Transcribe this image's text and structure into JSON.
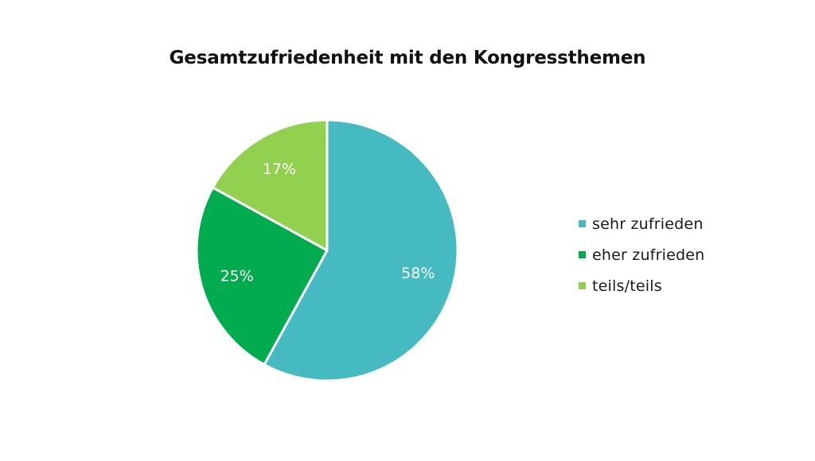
{
  "chart_data": {
    "type": "pie",
    "title": "Gesamtzufriedenheit mit den Kongressthemen",
    "categories": [
      "sehr zufrieden",
      "eher zufrieden",
      "teils/teils"
    ],
    "values": [
      58,
      25,
      17
    ],
    "labels": [
      "58%",
      "25%",
      "17%"
    ],
    "colors": [
      "#46BAC1",
      "#00AC4E",
      "#92D050"
    ],
    "legend_position": "right"
  }
}
